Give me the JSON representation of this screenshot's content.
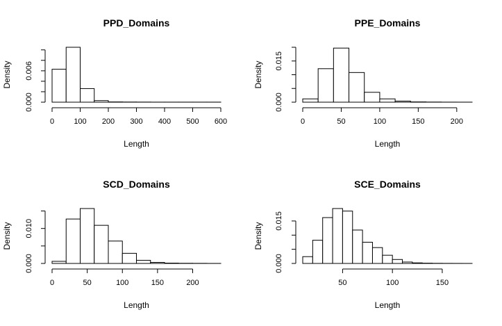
{
  "figure": {
    "panels": 4
  },
  "chart_data": [
    {
      "type": "bar",
      "title": "PPD_Domains",
      "xlabel": "Length",
      "ylabel": "Density",
      "bin_width": 50,
      "bin_start": 0,
      "values": [
        0.0063,
        0.0105,
        0.0026,
        0.0003,
        5e-05,
        3e-05,
        2e-05,
        1e-05,
        1e-05,
        1e-05,
        1e-05,
        1e-05
      ],
      "xlim": [
        0,
        600
      ],
      "ylim": [
        0,
        0.0105
      ],
      "xticks": [
        0,
        100,
        200,
        300,
        400,
        500,
        600
      ],
      "yticks": [
        0,
        0.002,
        0.004,
        0.006,
        0.008,
        0.01
      ],
      "ytick_labels": [
        "0.000",
        "",
        "",
        "0.006",
        "",
        ""
      ],
      "grid": false
    },
    {
      "type": "bar",
      "title": "PPE_Domains",
      "xlabel": "Length",
      "ylabel": "Density",
      "bin_width": 20,
      "bin_start": 0,
      "values": [
        0.0012,
        0.0122,
        0.0197,
        0.0108,
        0.0036,
        0.0012,
        0.0004,
        0.0001,
        5e-05,
        2e-05,
        1e-05
      ],
      "xlim": [
        0,
        220
      ],
      "ylim": [
        0,
        0.02
      ],
      "xticks": [
        0,
        50,
        100,
        150,
        200
      ],
      "yticks": [
        0,
        0.005,
        0.01,
        0.015,
        0.02
      ],
      "ytick_labels": [
        "0.000",
        "",
        "",
        "0.015",
        ""
      ],
      "grid": false
    },
    {
      "type": "bar",
      "title": "SCD_Domains",
      "xlabel": "Length",
      "ylabel": "Density",
      "bin_width": 20,
      "bin_start": 0,
      "values": [
        0.0006,
        0.0127,
        0.0157,
        0.0109,
        0.0064,
        0.0029,
        0.0009,
        0.0003,
        0.0001,
        5e-05,
        3e-05,
        1e-05
      ],
      "xlim": [
        0,
        240
      ],
      "ylim": [
        0,
        0.0157
      ],
      "xticks": [
        0,
        50,
        100,
        150,
        200
      ],
      "yticks": [
        0,
        0.005,
        0.01,
        0.015
      ],
      "ytick_labels": [
        "0.000",
        "",
        "0.010",
        ""
      ],
      "grid": false
    },
    {
      "type": "bar",
      "title": "SCE_Domains",
      "xlabel": "Length",
      "ylabel": "Density",
      "bin_width": 10,
      "bin_start": 10,
      "values": [
        0.0024,
        0.0082,
        0.0162,
        0.0194,
        0.0185,
        0.0118,
        0.0075,
        0.0056,
        0.0029,
        0.0014,
        0.0005,
        0.0002,
        0.0001,
        5e-05,
        3e-05,
        2e-05,
        1e-05
      ],
      "xlim": [
        10,
        180
      ],
      "ylim": [
        0,
        0.0194
      ],
      "xticks": [
        50,
        100,
        150
      ],
      "yticks": [
        0,
        0.005,
        0.01,
        0.015
      ],
      "ytick_labels": [
        "0.000",
        "",
        "",
        "0.015"
      ],
      "grid": false
    }
  ]
}
